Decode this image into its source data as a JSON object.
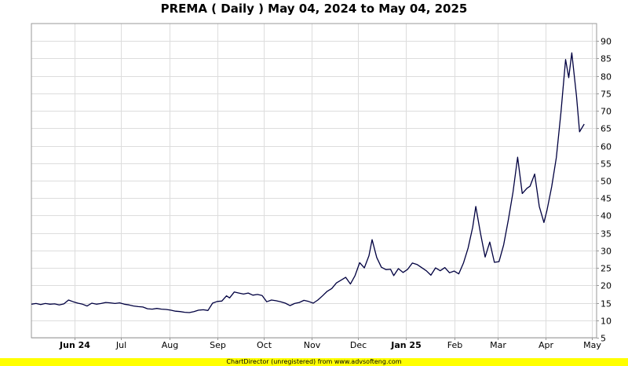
{
  "chart_data": {
    "type": "line",
    "title": "PREMA ( Daily ) May 04, 2024 to May 04, 2025",
    "xlabel": "",
    "ylabel": "",
    "x_range": [
      "2024-05-04",
      "2025-05-04"
    ],
    "ylim": [
      5,
      95
    ],
    "y_ticks": [
      5,
      10,
      15,
      20,
      25,
      30,
      35,
      40,
      45,
      50,
      55,
      60,
      65,
      70,
      75,
      80,
      85,
      90
    ],
    "y_axis_side": "right",
    "grid": true,
    "legend": "none",
    "line_color": "#000040",
    "x_ticks": [
      {
        "label": "Jun 24",
        "date": "2024-06-01",
        "bold": true
      },
      {
        "label": "Jul",
        "date": "2024-07-01",
        "bold": false
      },
      {
        "label": "Aug",
        "date": "2024-08-01",
        "bold": false
      },
      {
        "label": "Sep",
        "date": "2024-09-01",
        "bold": false
      },
      {
        "label": "Oct",
        "date": "2024-10-01",
        "bold": false
      },
      {
        "label": "Nov",
        "date": "2024-11-01",
        "bold": false
      },
      {
        "label": "Dec",
        "date": "2024-12-01",
        "bold": false
      },
      {
        "label": "Jan 25",
        "date": "2025-01-01",
        "bold": true
      },
      {
        "label": "Feb",
        "date": "2025-02-01",
        "bold": false
      },
      {
        "label": "Mar",
        "date": "2025-03-01",
        "bold": false
      },
      {
        "label": "Apr",
        "date": "2025-04-01",
        "bold": false
      },
      {
        "label": "May",
        "date": "2025-05-01",
        "bold": false
      }
    ],
    "series": [
      {
        "points": [
          [
            "2024-05-04",
            14.6
          ],
          [
            "2024-05-07",
            14.8
          ],
          [
            "2024-05-10",
            14.5
          ],
          [
            "2024-05-13",
            14.8
          ],
          [
            "2024-05-16",
            14.6
          ],
          [
            "2024-05-19",
            14.7
          ],
          [
            "2024-05-22",
            14.4
          ],
          [
            "2024-05-25",
            14.7
          ],
          [
            "2024-05-28",
            15.8
          ],
          [
            "2024-05-31",
            15.3
          ],
          [
            "2024-06-03",
            14.9
          ],
          [
            "2024-06-06",
            14.6
          ],
          [
            "2024-06-09",
            14.1
          ],
          [
            "2024-06-12",
            14.9
          ],
          [
            "2024-06-15",
            14.6
          ],
          [
            "2024-06-18",
            14.8
          ],
          [
            "2024-06-21",
            15.1
          ],
          [
            "2024-06-24",
            15.0
          ],
          [
            "2024-06-27",
            14.8
          ],
          [
            "2024-06-30",
            15.0
          ],
          [
            "2024-07-03",
            14.6
          ],
          [
            "2024-07-06",
            14.4
          ],
          [
            "2024-07-09",
            14.1
          ],
          [
            "2024-07-12",
            13.9
          ],
          [
            "2024-07-15",
            13.8
          ],
          [
            "2024-07-18",
            13.3
          ],
          [
            "2024-07-21",
            13.2
          ],
          [
            "2024-07-24",
            13.4
          ],
          [
            "2024-07-27",
            13.2
          ],
          [
            "2024-07-30",
            13.1
          ],
          [
            "2024-08-02",
            12.9
          ],
          [
            "2024-08-05",
            12.6
          ],
          [
            "2024-08-08",
            12.5
          ],
          [
            "2024-08-11",
            12.3
          ],
          [
            "2024-08-14",
            12.2
          ],
          [
            "2024-08-17",
            12.5
          ],
          [
            "2024-08-20",
            12.9
          ],
          [
            "2024-08-23",
            13.0
          ],
          [
            "2024-08-26",
            12.8
          ],
          [
            "2024-08-29",
            14.9
          ],
          [
            "2024-09-01",
            15.4
          ],
          [
            "2024-09-04",
            15.5
          ],
          [
            "2024-09-07",
            17.0
          ],
          [
            "2024-09-09",
            16.4
          ],
          [
            "2024-09-12",
            18.1
          ],
          [
            "2024-09-15",
            17.8
          ],
          [
            "2024-09-18",
            17.5
          ],
          [
            "2024-09-21",
            17.8
          ],
          [
            "2024-09-24",
            17.2
          ],
          [
            "2024-09-27",
            17.4
          ],
          [
            "2024-09-30",
            17.1
          ],
          [
            "2024-10-03",
            15.3
          ],
          [
            "2024-10-06",
            15.8
          ],
          [
            "2024-10-09",
            15.6
          ],
          [
            "2024-10-12",
            15.3
          ],
          [
            "2024-10-15",
            14.9
          ],
          [
            "2024-10-18",
            14.2
          ],
          [
            "2024-10-21",
            14.8
          ],
          [
            "2024-10-24",
            15.1
          ],
          [
            "2024-10-27",
            15.7
          ],
          [
            "2024-10-30",
            15.4
          ],
          [
            "2024-11-02",
            14.9
          ],
          [
            "2024-11-05",
            15.8
          ],
          [
            "2024-11-08",
            17.0
          ],
          [
            "2024-11-11",
            18.3
          ],
          [
            "2024-11-14",
            19.1
          ],
          [
            "2024-11-17",
            20.7
          ],
          [
            "2024-11-20",
            21.5
          ],
          [
            "2024-11-23",
            22.3
          ],
          [
            "2024-11-26",
            20.4
          ],
          [
            "2024-11-29",
            22.8
          ],
          [
            "2024-12-02",
            26.5
          ],
          [
            "2024-12-05",
            25.0
          ],
          [
            "2024-12-08",
            28.5
          ],
          [
            "2024-12-10",
            33.1
          ],
          [
            "2024-12-13",
            28.0
          ],
          [
            "2024-12-16",
            25.2
          ],
          [
            "2024-12-19",
            24.5
          ],
          [
            "2024-12-22",
            24.6
          ],
          [
            "2024-12-24",
            22.8
          ],
          [
            "2024-12-27",
            24.8
          ],
          [
            "2024-12-30",
            23.7
          ],
          [
            "2025-01-02",
            24.6
          ],
          [
            "2025-01-05",
            26.4
          ],
          [
            "2025-01-08",
            26.0
          ],
          [
            "2025-01-11",
            25.1
          ],
          [
            "2025-01-14",
            24.2
          ],
          [
            "2025-01-17",
            22.9
          ],
          [
            "2025-01-20",
            25.0
          ],
          [
            "2025-01-23",
            24.2
          ],
          [
            "2025-01-26",
            25.1
          ],
          [
            "2025-01-29",
            23.6
          ],
          [
            "2025-02-01",
            24.1
          ],
          [
            "2025-02-04",
            23.3
          ],
          [
            "2025-02-07",
            26.4
          ],
          [
            "2025-02-10",
            30.7
          ],
          [
            "2025-02-13",
            36.7
          ],
          [
            "2025-02-15",
            42.6
          ],
          [
            "2025-02-18",
            34.9
          ],
          [
            "2025-02-21",
            28.1
          ],
          [
            "2025-02-24",
            32.4
          ],
          [
            "2025-02-27",
            26.6
          ],
          [
            "2025-03-02",
            26.8
          ],
          [
            "2025-03-05",
            31.6
          ],
          [
            "2025-03-08",
            38.8
          ],
          [
            "2025-03-11",
            46.7
          ],
          [
            "2025-03-14",
            56.7
          ],
          [
            "2025-03-17",
            46.3
          ],
          [
            "2025-03-20",
            47.8
          ],
          [
            "2025-03-22",
            48.4
          ],
          [
            "2025-03-25",
            51.9
          ],
          [
            "2025-03-28",
            42.6
          ],
          [
            "2025-03-31",
            38.0
          ],
          [
            "2025-04-02",
            41.6
          ],
          [
            "2025-04-05",
            48.3
          ],
          [
            "2025-04-08",
            56.6
          ],
          [
            "2025-04-11",
            69.6
          ],
          [
            "2025-04-14",
            84.7
          ],
          [
            "2025-04-16",
            79.5
          ],
          [
            "2025-04-18",
            86.6
          ],
          [
            "2025-04-21",
            74.2
          ],
          [
            "2025-04-23",
            64.0
          ],
          [
            "2025-04-26",
            66.2
          ]
        ]
      }
    ]
  },
  "footer": {
    "text": "ChartDirector (unregistered) from www.advsofteng.com",
    "background": "#ffff00"
  }
}
